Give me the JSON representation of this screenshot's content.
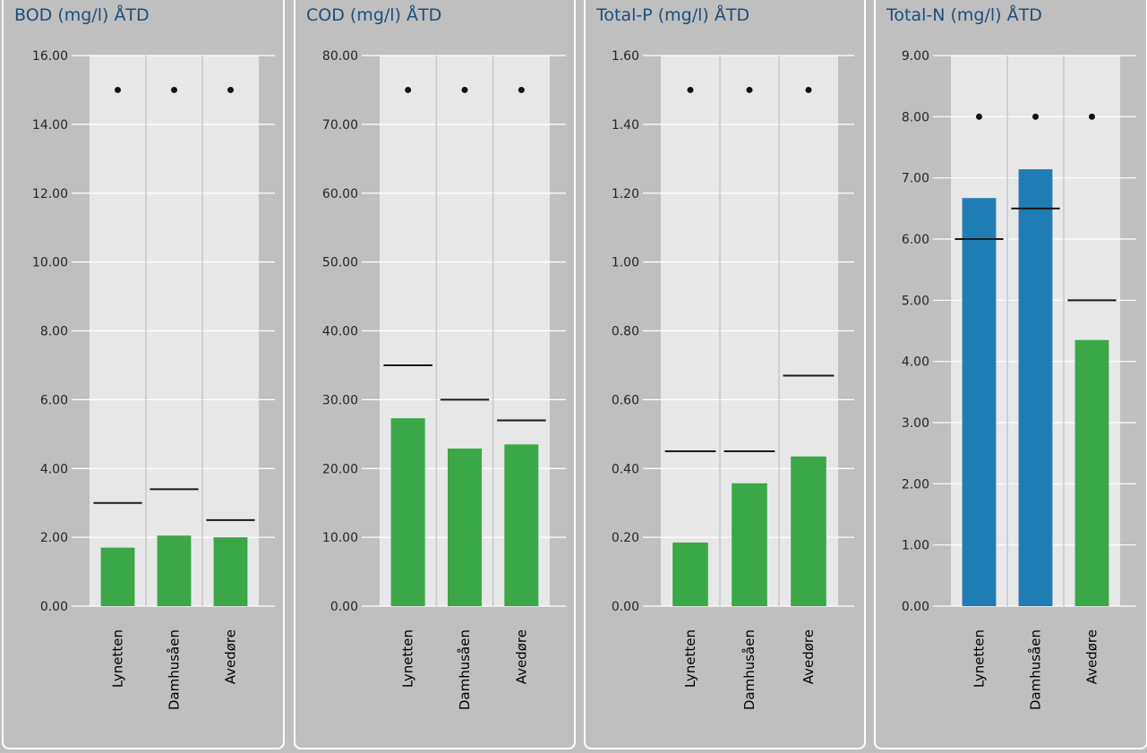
{
  "colors": {
    "background": "#bfbfbf",
    "panel_border": "#ffffff",
    "plot_area": "#e7e7e7",
    "title": "#1f4e79",
    "bar_green": "#3aa846",
    "bar_blue": "#1f7db3",
    "limit_line": "#1a1a1a",
    "marker": "#111111"
  },
  "chart_data": [
    {
      "type": "bar",
      "title": "BOD (mg/l) ÅTD",
      "categories": [
        "Lynetten",
        "Damhusåen",
        "Avedøre"
      ],
      "ylim": [
        0,
        16
      ],
      "y_ticks": [
        "0.00",
        "2.00",
        "4.00",
        "6.00",
        "8.00",
        "10.00",
        "12.00",
        "14.00",
        "16.00"
      ],
      "values": [
        1.7,
        2.05,
        2.0
      ],
      "bar_colors": [
        "#3aa846",
        "#3aa846",
        "#3aa846"
      ],
      "limit_lines": [
        3.0,
        3.4,
        2.5
      ],
      "markers": [
        15,
        15,
        15
      ],
      "legend": "none",
      "grid": true
    },
    {
      "type": "bar",
      "title": "COD (mg/l) ÅTD",
      "categories": [
        "Lynetten",
        "Damhusåen",
        "Avedøre"
      ],
      "ylim": [
        0,
        80
      ],
      "y_ticks": [
        "0.00",
        "10.00",
        "20.00",
        "30.00",
        "40.00",
        "50.00",
        "60.00",
        "70.00",
        "80.00"
      ],
      "values": [
        27.3,
        22.9,
        23.5
      ],
      "bar_colors": [
        "#3aa846",
        "#3aa846",
        "#3aa846"
      ],
      "limit_lines": [
        35,
        30,
        27
      ],
      "markers": [
        75,
        75,
        75
      ],
      "legend": "none",
      "grid": true
    },
    {
      "type": "bar",
      "title": "Total-P (mg/l) ÅTD",
      "categories": [
        "Lynetten",
        "Damhusåen",
        "Avedøre"
      ],
      "ylim": [
        0,
        1.6
      ],
      "y_ticks": [
        "0.00",
        "0.20",
        "0.40",
        "0.60",
        "0.80",
        "1.00",
        "1.20",
        "1.40",
        "1.60"
      ],
      "values": [
        0.185,
        0.357,
        0.435
      ],
      "bar_colors": [
        "#3aa846",
        "#3aa846",
        "#3aa846"
      ],
      "limit_lines": [
        0.45,
        0.45,
        0.67
      ],
      "markers": [
        1.5,
        1.5,
        1.5
      ],
      "legend": "none",
      "grid": true
    },
    {
      "type": "bar",
      "title": "Total-N (mg/l) ÅTD",
      "categories": [
        "Lynetten",
        "Damhusåen",
        "Avedøre"
      ],
      "ylim": [
        0,
        9
      ],
      "y_ticks": [
        "0.00",
        "1.00",
        "2.00",
        "3.00",
        "4.00",
        "5.00",
        "6.00",
        "7.00",
        "8.00",
        "9.00"
      ],
      "values": [
        6.67,
        7.14,
        4.35
      ],
      "bar_colors": [
        "#1f7db3",
        "#1f7db3",
        "#3aa846"
      ],
      "limit_lines": [
        6.0,
        6.5,
        5.0
      ],
      "markers": [
        8,
        8,
        8
      ],
      "legend": "none",
      "grid": true
    }
  ]
}
